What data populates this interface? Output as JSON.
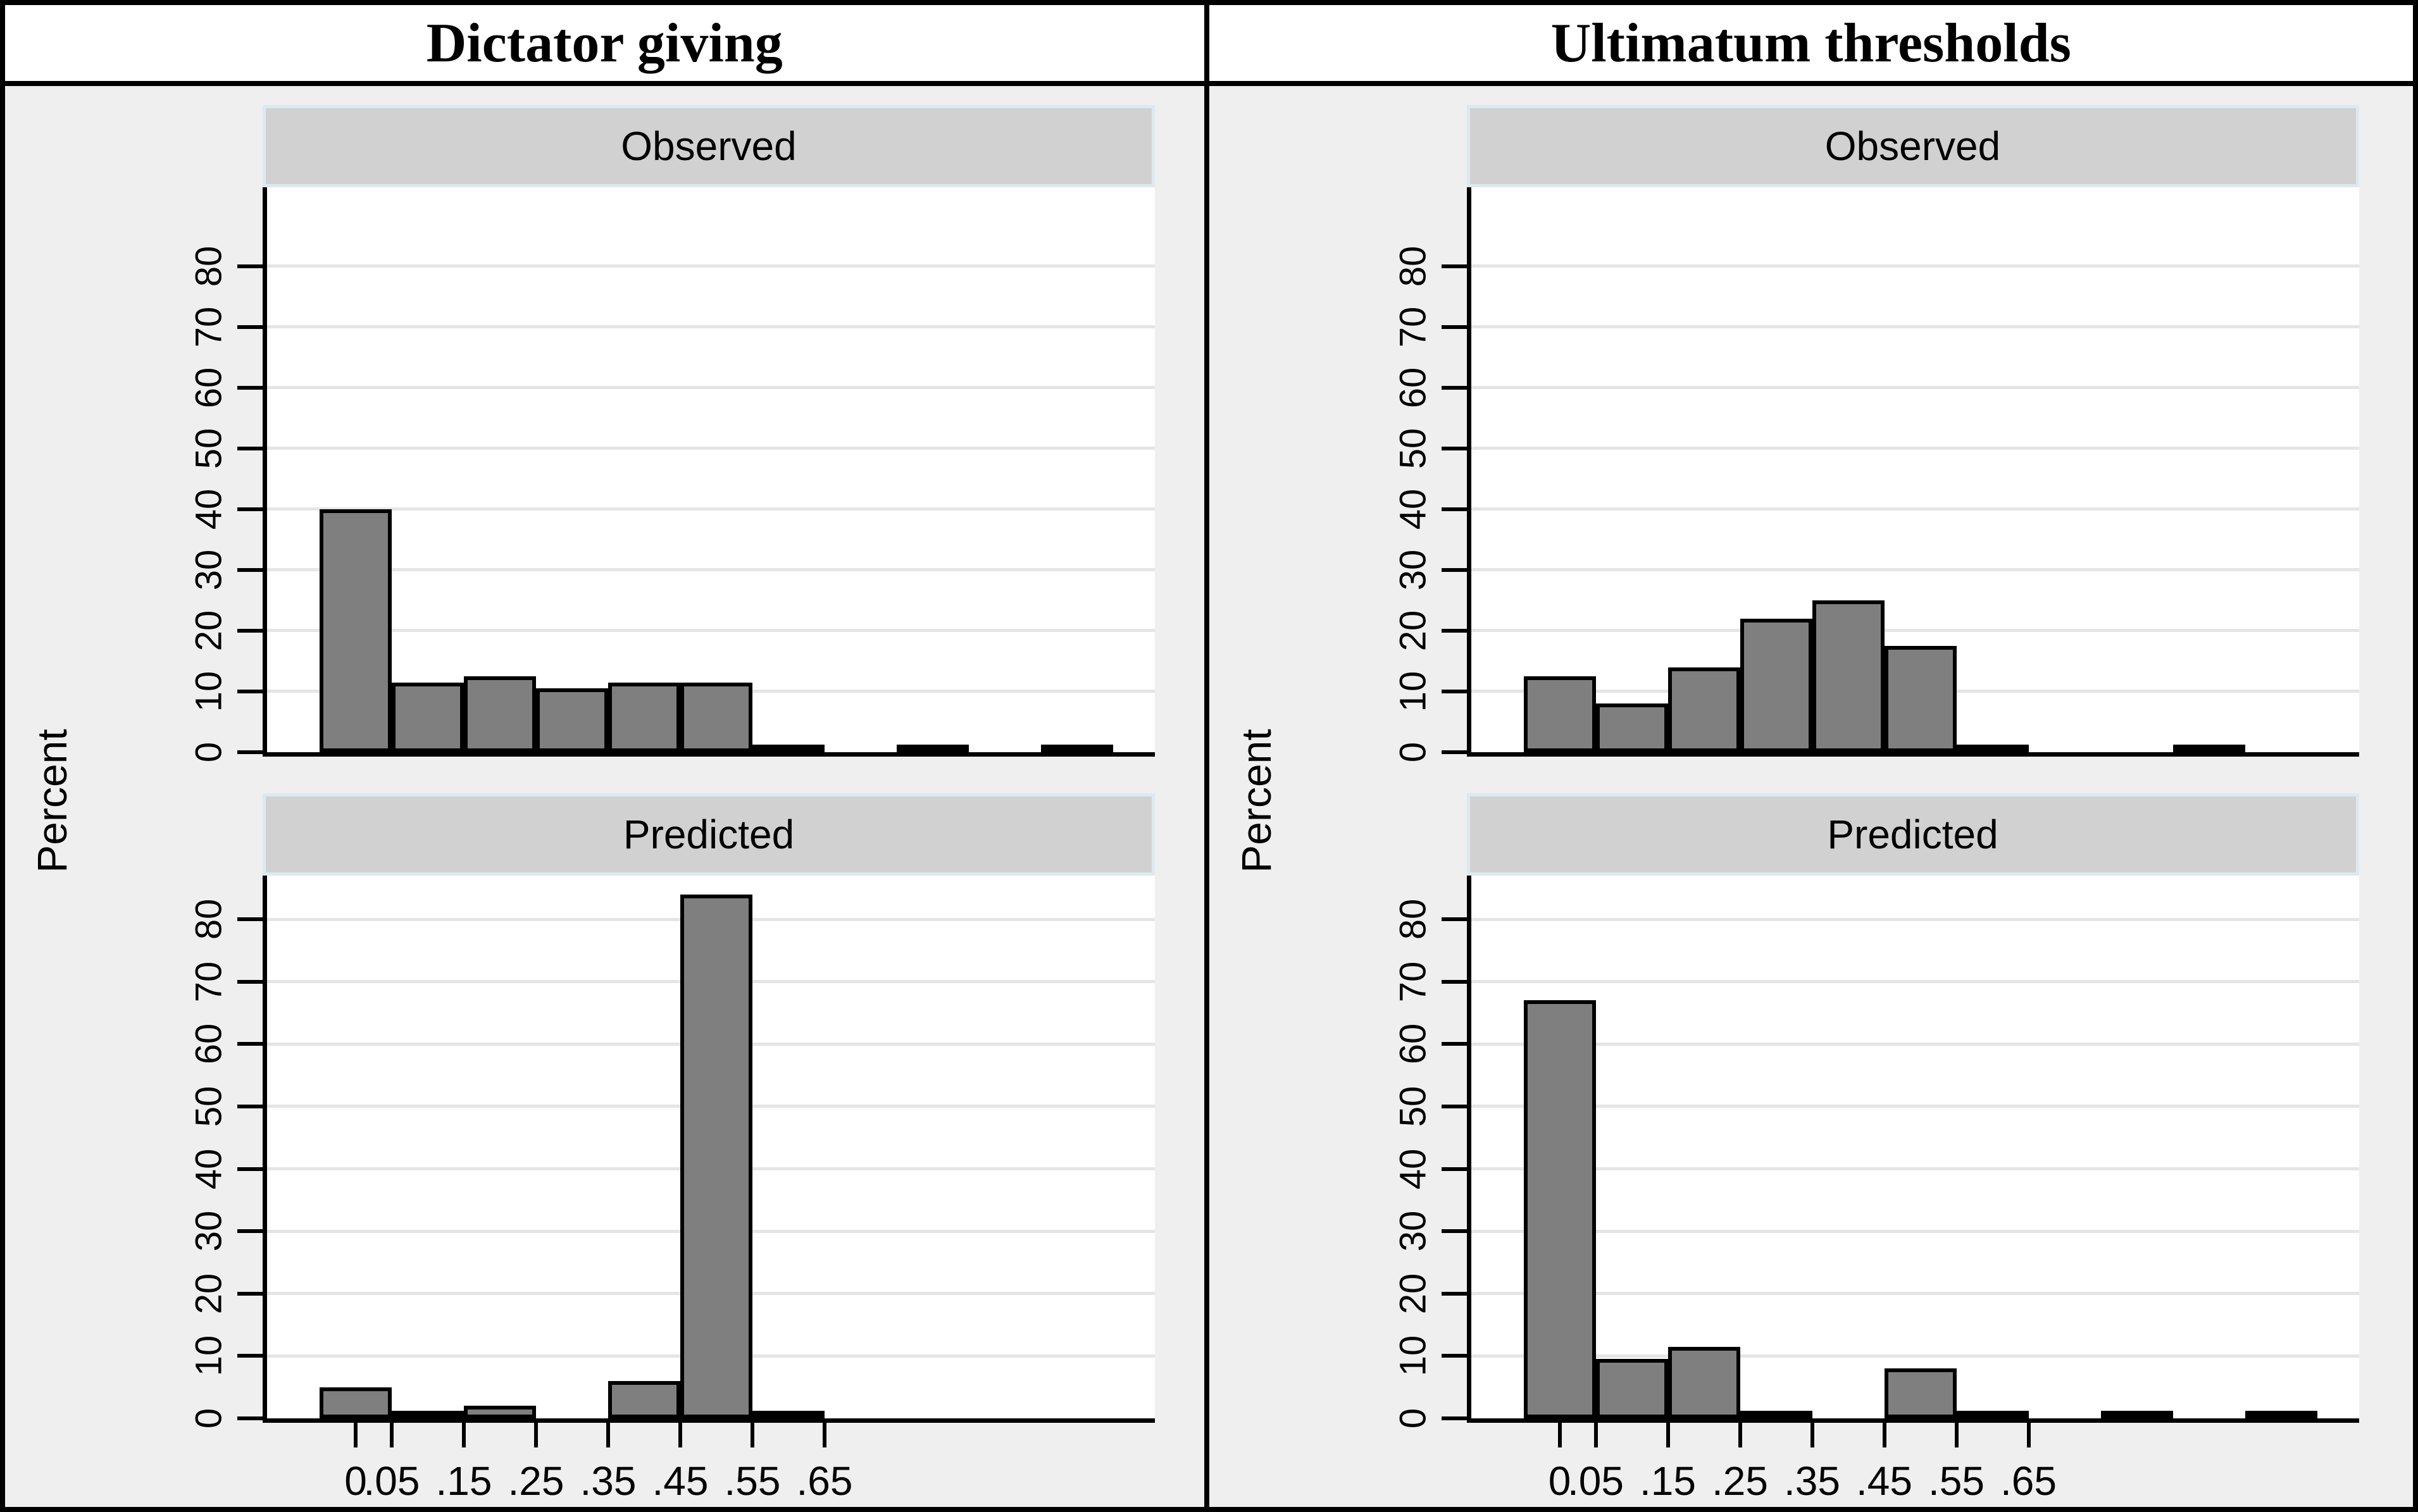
{
  "header": {
    "left_title": "Dictator giving",
    "right_title": "Ultimatum thresholds"
  },
  "panel_labels": {
    "top": "Observed",
    "bottom": "Predicted"
  },
  "axes": {
    "ylabel": "Percent",
    "y_ticks": [
      0,
      10,
      20,
      30,
      40,
      50,
      60,
      70,
      80
    ],
    "x_ticks": [
      {
        "value": 0,
        "label": "0"
      },
      {
        "value": 0.05,
        "label": ".05"
      },
      {
        "value": 0.15,
        "label": ".15"
      },
      {
        "value": 0.25,
        "label": ".25"
      },
      {
        "value": 0.35,
        "label": ".35"
      },
      {
        "value": 0.45,
        "label": ".45"
      },
      {
        "value": 0.55,
        "label": ".55"
      },
      {
        "value": 0.65,
        "label": ".65"
      }
    ]
  },
  "colors": {
    "bar_fill": "#7f7f7f",
    "bar_border": "#000000",
    "panel_bg": "#efefef",
    "header_bg": "#d1d1d1",
    "header_border": "#dce9f0",
    "gridline": "#e5e5e5",
    "axis": "#000000",
    "background": "#ffffff"
  },
  "chart_data": [
    {
      "id": "dictator-observed",
      "column": "Dictator giving",
      "panel": "Observed",
      "type": "bar",
      "bin_width": 0.1,
      "x_centers": [
        0,
        0.1,
        0.2,
        0.3,
        0.4,
        0.5,
        0.6,
        0.8,
        1.0
      ],
      "values": [
        40,
        11.5,
        12.5,
        10.5,
        11.5,
        11.5,
        1,
        1,
        1
      ],
      "xlabel": "",
      "ylabel": "Percent",
      "ylim": [
        0,
        93
      ],
      "grid": true,
      "legend": "none"
    },
    {
      "id": "dictator-predicted",
      "column": "Dictator giving",
      "panel": "Predicted",
      "type": "bar",
      "bin_width": 0.1,
      "x_centers": [
        0,
        0.1,
        0.2,
        0.4,
        0.5,
        0.6
      ],
      "values": [
        5,
        1,
        2,
        6,
        84,
        1
      ],
      "xlabel": "",
      "ylabel": "Percent",
      "ylim": [
        0,
        87
      ],
      "grid": true,
      "legend": "none"
    },
    {
      "id": "ultimatum-observed",
      "column": "Ultimatum thresholds",
      "panel": "Observed",
      "type": "bar",
      "bin_width": 0.1,
      "x_centers": [
        0,
        0.1,
        0.2,
        0.3,
        0.4,
        0.5,
        0.6,
        0.9
      ],
      "values": [
        12.5,
        8,
        14,
        22,
        25,
        17.5,
        1,
        1
      ],
      "xlabel": "",
      "ylabel": "Percent",
      "ylim": [
        0,
        93
      ],
      "grid": true,
      "legend": "none"
    },
    {
      "id": "ultimatum-predicted",
      "column": "Ultimatum thresholds",
      "panel": "Predicted",
      "type": "bar",
      "bin_width": 0.1,
      "x_centers": [
        0,
        0.1,
        0.2,
        0.3,
        0.5,
        0.6,
        0.8,
        1.0
      ],
      "values": [
        67,
        9.5,
        11.5,
        1,
        8,
        1,
        1,
        1
      ],
      "xlabel": "",
      "ylabel": "Percent",
      "ylim": [
        0,
        87
      ],
      "grid": true,
      "legend": "none"
    }
  ]
}
